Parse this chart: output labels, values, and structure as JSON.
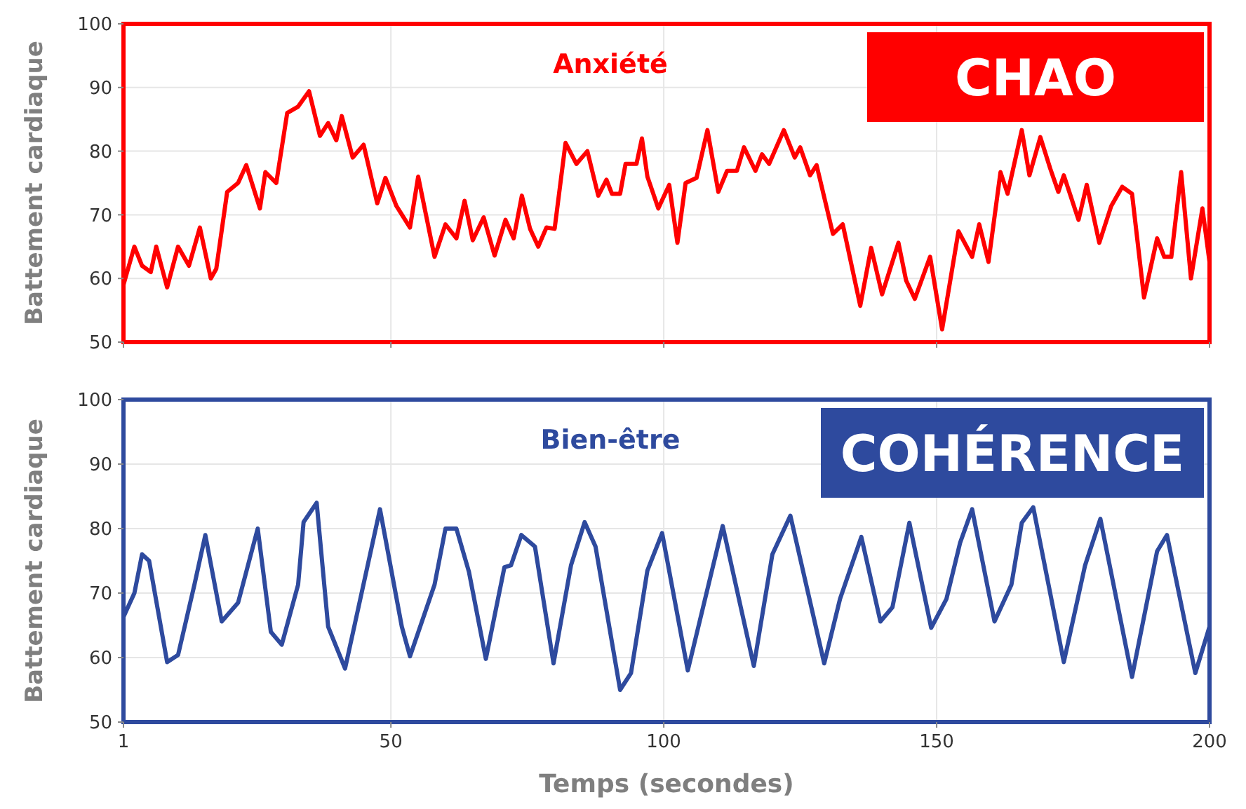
{
  "chart_data": [
    {
      "type": "line",
      "title": "Anxiété",
      "ylabel": "Battement cardiaque",
      "annotations": [
        "CHAO"
      ],
      "xlim": [
        1,
        200
      ],
      "xticks": [
        1,
        50,
        100,
        150,
        200
      ],
      "ylim": [
        50,
        100
      ],
      "yticks": [
        50,
        60,
        70,
        80,
        90,
        100
      ],
      "grid": true,
      "tick_labels": "y",
      "series": [
        {
          "color": "#ff0000",
          "x": [
            1,
            3,
            4.4,
            6,
            7,
            9,
            11,
            13,
            15,
            17,
            18,
            20,
            22,
            23.5,
            26,
            27,
            29,
            31,
            33,
            35,
            37,
            38.5,
            40,
            41,
            43,
            45,
            47.5,
            49,
            51,
            53.5,
            55,
            58,
            60,
            62,
            63.5,
            65,
            67,
            69,
            71,
            72.5,
            74,
            75.5,
            77,
            78.5,
            80,
            82,
            84,
            86,
            88,
            89.5,
            90.5,
            92,
            93,
            95,
            96,
            97,
            99,
            101,
            102.5,
            104,
            106,
            108,
            110,
            111.6,
            113.4,
            114.7,
            116.8,
            118,
            119.3,
            122,
            124,
            125,
            126.8,
            128,
            131,
            132.8,
            136,
            138,
            140,
            143,
            144.4,
            146,
            148.8,
            151,
            154,
            156.5,
            157.8,
            159.5,
            161.7,
            163,
            165.6,
            167,
            169,
            170.8,
            172.3,
            173.3,
            176,
            177.5,
            179.8,
            182,
            184,
            185.8,
            188,
            190.4,
            191.7,
            193,
            194.8,
            196.6,
            198.7,
            200
          ],
          "values": [
            59,
            65,
            62,
            61,
            65,
            58.6,
            65,
            62,
            68,
            60,
            61.5,
            73.6,
            75,
            77.8,
            71,
            76.7,
            75,
            86,
            87,
            89.4,
            82.4,
            84.4,
            81.7,
            85.5,
            79,
            81,
            71.8,
            75.8,
            71.4,
            68,
            76,
            63.4,
            68.5,
            66.3,
            72.2,
            66,
            69.6,
            63.6,
            69.2,
            66.3,
            73,
            67.8,
            65,
            68,
            67.8,
            81.3,
            78,
            80,
            73,
            75.5,
            73.3,
            73.3,
            78,
            78,
            82,
            76,
            71,
            74.7,
            65.6,
            75,
            75.8,
            83.3,
            73.6,
            76.9,
            76.9,
            80.6,
            76.9,
            79.5,
            78,
            83.3,
            79,
            80.6,
            76.2,
            77.8,
            67,
            68.5,
            55.7,
            64.8,
            57.5,
            65.6,
            59.7,
            56.8,
            63.4,
            52,
            67.4,
            63.4,
            68.5,
            62.6,
            76.7,
            73.3,
            83.3,
            76.2,
            82.2,
            77.3,
            73.6,
            76.2,
            69.2,
            74.7,
            65.6,
            71.4,
            74.4,
            73.3,
            57,
            66.3,
            63.4,
            63.4,
            76.7,
            60,
            71,
            62.6
          ]
        }
      ]
    },
    {
      "type": "line",
      "title": "Bien-être",
      "xlabel": "Temps (secondes)",
      "ylabel": "Battement cardiaque",
      "annotations": [
        "COHÉRENCE"
      ],
      "xlim": [
        1,
        200
      ],
      "xticks": [
        1,
        50,
        100,
        150,
        200
      ],
      "ylim": [
        50,
        100
      ],
      "yticks": [
        50,
        60,
        70,
        80,
        90,
        100
      ],
      "grid": true,
      "series": [
        {
          "color": "#2e4a9e",
          "x": [
            1,
            3,
            4.4,
            5.7,
            9,
            11,
            14,
            16,
            19,
            22,
            25.6,
            28,
            30,
            33,
            34,
            36.4,
            38.5,
            41.6,
            48,
            52,
            53.5,
            58,
            60,
            62,
            64.3,
            67.4,
            70.8,
            72,
            73.9,
            76.4,
            79.8,
            83,
            85.5,
            87.5,
            92,
            94,
            97,
            99.7,
            104.4,
            110.8,
            116.5,
            119.9,
            123.2,
            129.4,
            132.3,
            136.2,
            139.7,
            141.9,
            145,
            149,
            151.8,
            154.3,
            156.5,
            160.6,
            163.7,
            165.6,
            167.7,
            173.3,
            177.2,
            180,
            185.8,
            190.4,
            192.2,
            197.4,
            200
          ],
          "values": [
            66.3,
            70,
            76,
            75,
            59.3,
            60.4,
            71.3,
            79,
            65.6,
            68.5,
            80,
            64,
            62,
            71.3,
            81,
            84,
            64.8,
            58.3,
            83,
            64.8,
            60.2,
            71.3,
            80,
            80,
            73.3,
            59.8,
            74,
            74.3,
            79,
            77.2,
            59.1,
            74.3,
            81,
            77.2,
            55,
            57.6,
            73.5,
            79.3,
            58,
            80.4,
            58.7,
            76,
            82,
            59.1,
            69.1,
            78.7,
            65.6,
            67.8,
            80.9,
            64.6,
            69.1,
            77.8,
            83,
            65.6,
            71.3,
            80.9,
            83.3,
            59.3,
            74.3,
            81.5,
            57,
            76.5,
            79,
            57.6,
            64.8
          ]
        }
      ]
    }
  ]
}
